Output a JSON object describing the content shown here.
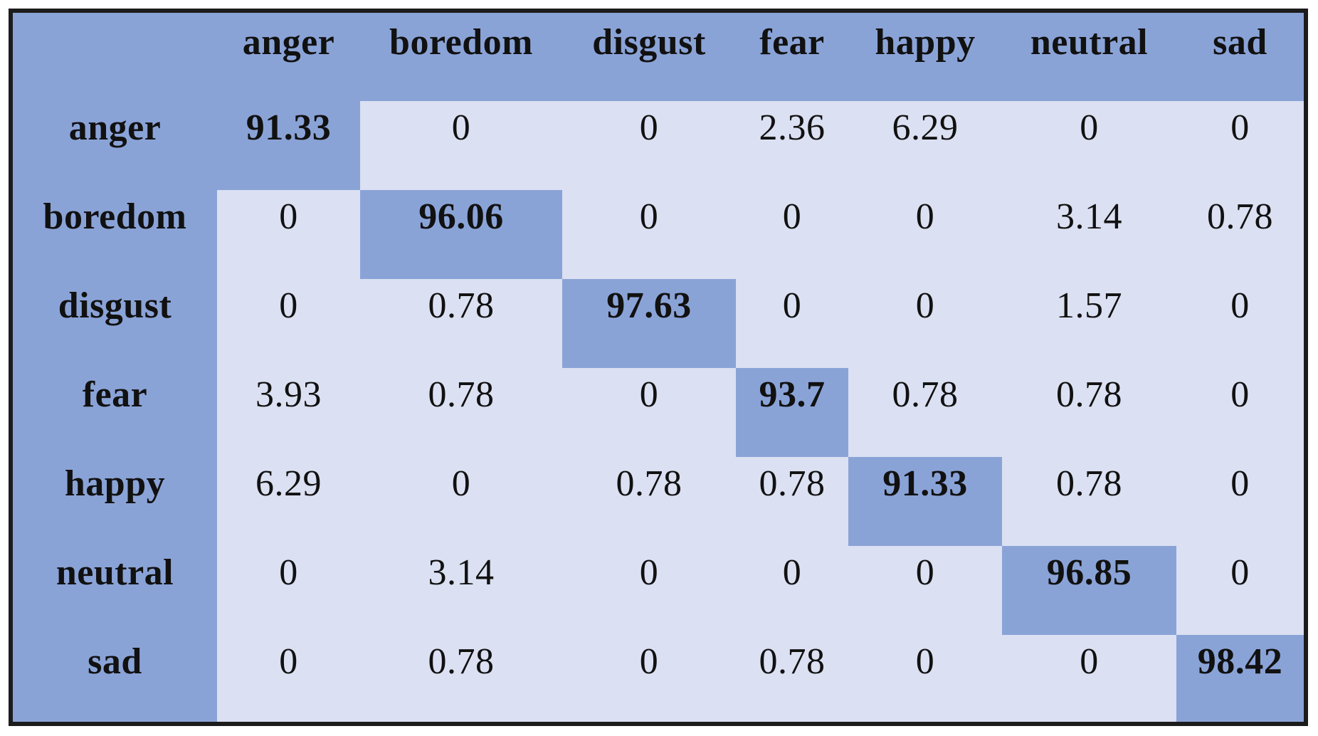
{
  "figure": {
    "kind": "confusion-matrix",
    "unit": "percent"
  },
  "chart_data": {
    "type": "heatmap",
    "title": "",
    "categories": [
      "anger",
      "boredom",
      "disgust",
      "fear",
      "happy",
      "neutral",
      "sad"
    ],
    "row_labels": [
      "anger",
      "boredom",
      "disgust",
      "fear",
      "happy",
      "neutral",
      "sad"
    ],
    "matrix_display": [
      [
        "91.33",
        "0",
        "0",
        "2.36",
        "6.29",
        "0",
        "0"
      ],
      [
        "0",
        "96.06",
        "0",
        "0",
        "0",
        "3.14",
        "0.78"
      ],
      [
        "0",
        "0.78",
        "97.63",
        "0",
        "0",
        "1.57",
        "0"
      ],
      [
        "3.93",
        "0.78",
        "0",
        "93.7",
        "0.78",
        "0.78",
        "0"
      ],
      [
        "6.29",
        "0",
        "0.78",
        "0.78",
        "91.33",
        "0.78",
        "0"
      ],
      [
        "0",
        "3.14",
        "0",
        "0",
        "0",
        "96.85",
        "0"
      ],
      [
        "0",
        "0.78",
        "0",
        "0.78",
        "0",
        "0",
        "98.42"
      ]
    ],
    "matrix_numeric": [
      [
        91.33,
        0,
        0,
        2.36,
        6.29,
        0,
        0
      ],
      [
        0,
        96.06,
        0,
        0,
        0,
        3.14,
        0.78
      ],
      [
        0,
        0.78,
        97.63,
        0,
        0,
        1.57,
        0
      ],
      [
        3.93,
        0.78,
        0,
        93.7,
        0.78,
        0.78,
        0
      ],
      [
        6.29,
        0,
        0.78,
        0.78,
        91.33,
        0.78,
        0
      ],
      [
        0,
        3.14,
        0,
        0,
        0,
        96.85,
        0
      ],
      [
        0,
        0.78,
        0,
        0.78,
        0,
        0,
        98.42
      ]
    ],
    "diagonal_highlighted": true,
    "legend": "none",
    "colors": {
      "header_fill": "#8aa3d7",
      "diagonal_fill": "#8aa3d7",
      "offdiagonal_fill": "#dbe0f2",
      "outer_border": "#1c1c1c",
      "text": "#111111",
      "page_background": "#ffffff"
    }
  }
}
